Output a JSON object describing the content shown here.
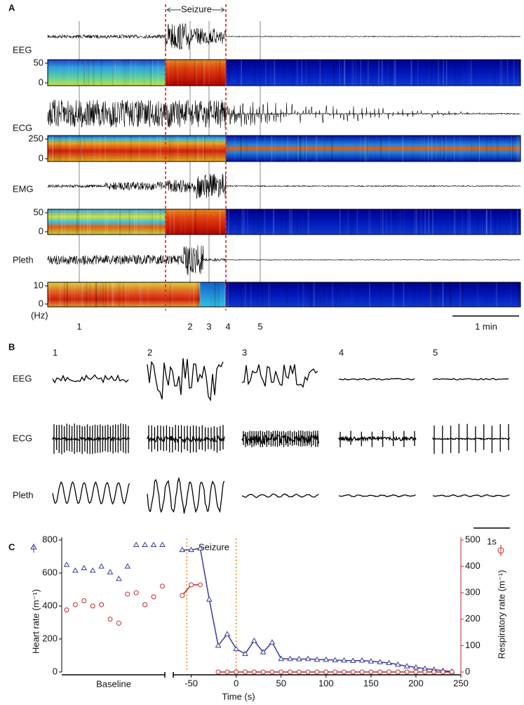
{
  "panel_a": {
    "label": "A",
    "seizure_label": "Seizure",
    "channels": [
      {
        "name": "EEG",
        "ticks": [
          50,
          0
        ]
      },
      {
        "name": "ECG",
        "ticks": [
          250,
          0
        ]
      },
      {
        "name": "EMG",
        "ticks": [
          50,
          0
        ]
      },
      {
        "name": "Pleth",
        "ticks": [
          10,
          0
        ]
      }
    ],
    "unit": "(Hz)",
    "markers": [
      "1",
      "2",
      "3",
      "4",
      "5"
    ],
    "scale_label": "1 min"
  },
  "panel_b": {
    "label": "B",
    "columns": [
      "1",
      "2",
      "3",
      "4",
      "5"
    ],
    "rows": [
      "EEG",
      "ECG",
      "Pleth"
    ],
    "scale_label": "1s"
  },
  "panel_c": {
    "label": "C"
  },
  "chart_data": [
    {
      "type": "scatter",
      "xlabel": "Baseline",
      "ylabel": "Heart rate (m⁻¹)",
      "ylim": [
        0,
        800
      ],
      "yticks": [
        0,
        200,
        400,
        600,
        800
      ],
      "y2lim": [
        0,
        500
      ],
      "series": [
        {
          "color": "#3a3a9c",
          "marker": "triangle",
          "values": [
            650,
            615,
            630,
            615,
            640,
            605,
            565,
            640,
            770,
            770,
            770,
            770
          ]
        },
        {
          "color": "#c0282a",
          "marker": "circle",
          "axis": "y2",
          "values": [
            235,
            255,
            270,
            250,
            255,
            200,
            185,
            295,
            300,
            255,
            285,
            325
          ]
        }
      ]
    },
    {
      "type": "line",
      "title": "Seizure",
      "xlabel": "Time (s)",
      "y2label": "Respiratory rate (m⁻¹)",
      "x": [
        -60,
        -50,
        -40,
        -30,
        -20,
        -10,
        0,
        10,
        20,
        30,
        40,
        50,
        60,
        70,
        80,
        90,
        100,
        110,
        120,
        130,
        140,
        150,
        160,
        170,
        180,
        190,
        200,
        210,
        220,
        230,
        240
      ],
      "xlim": [
        -70,
        250
      ],
      "xticks": [
        -50,
        0,
        50,
        100,
        150,
        200,
        250
      ],
      "ylim": [
        0,
        800
      ],
      "y2lim": [
        0,
        500
      ],
      "y2ticks": [
        0,
        100,
        200,
        300,
        400,
        500
      ],
      "seizure_lines": [
        -55,
        0
      ],
      "series": [
        {
          "color": "#3a3a9c",
          "marker": "triangle",
          "values": [
            740,
            740,
            750,
            440,
            160,
            230,
            140,
            110,
            190,
            120,
            180,
            80,
            80,
            78,
            80,
            75,
            75,
            72,
            70,
            68,
            70,
            65,
            60,
            55,
            45,
            35,
            28,
            20,
            15,
            8,
            3
          ]
        },
        {
          "color": "#c0282a",
          "marker": "circle",
          "axis": "y2",
          "values": [
            290,
            330,
            330,
            null,
            0,
            0,
            0,
            0,
            0,
            0,
            0,
            0,
            0,
            0,
            0,
            0,
            0,
            0,
            0,
            0,
            0,
            0,
            0,
            0,
            0,
            0,
            0,
            0,
            0,
            0,
            0
          ]
        }
      ]
    }
  ]
}
